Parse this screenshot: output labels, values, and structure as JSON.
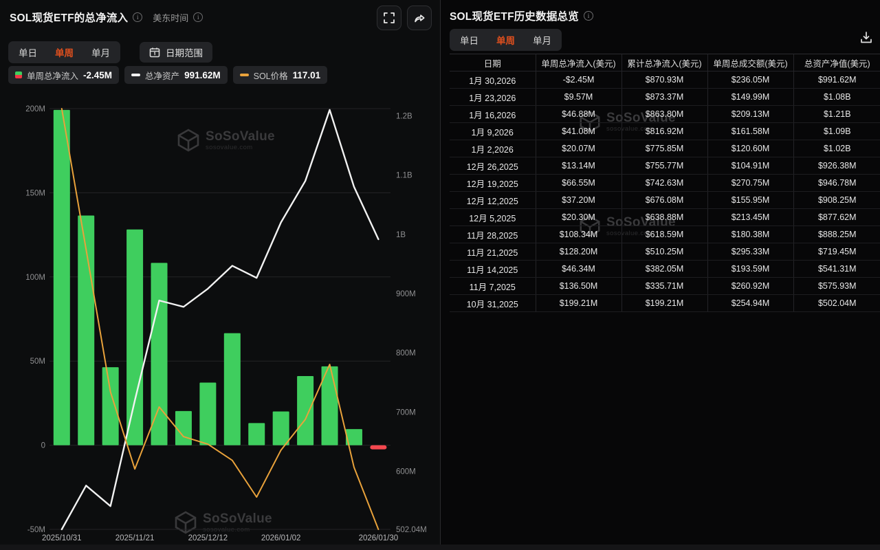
{
  "watermark": {
    "name": "SoSoValue",
    "domain": "sosovalue.com"
  },
  "left_panel": {
    "title": "SOL现货ETF的总净流入",
    "timezone": "美东时间",
    "tabs": [
      "单日",
      "单周",
      "单月"
    ],
    "active_tab": "单周",
    "date_range_label": "日期范围",
    "legend": [
      {
        "label": "单周总净流入",
        "value": "-2.45M",
        "icon": "split-green-red"
      },
      {
        "label": "总净资产",
        "value": "991.62M",
        "icon": "white-dash"
      },
      {
        "label": "SOL价格",
        "value": "117.01",
        "icon": "orange-dash"
      }
    ]
  },
  "chart_data": {
    "type": "bar",
    "subtype": "bar+line combo, dual axis",
    "title": "SOL现货ETF的总净流入",
    "categories": [
      "2025/10/31",
      "2025/11/07",
      "2025/11/14",
      "2025/11/21",
      "2025/11/28",
      "2025/12/05",
      "2025/12/12",
      "2025/12/19",
      "2025/12/26",
      "2026/01/02",
      "2026/01/09",
      "2026/01/16",
      "2026/01/23",
      "2026/01/30"
    ],
    "x_tick_indices": [
      0,
      3,
      6,
      9,
      13
    ],
    "x_tick_labels": [
      "2025/10/31",
      "2025/11/21",
      "2025/12/12",
      "2026/01/02",
      "2026/01/30"
    ],
    "series": [
      {
        "name": "单周总净流入",
        "type": "bar",
        "axis": "left",
        "unit": "M USD",
        "values": [
          199.21,
          136.5,
          46.34,
          128.2,
          108.34,
          20.3,
          37.2,
          66.55,
          13.14,
          20.07,
          41.08,
          46.88,
          9.57,
          -2.45
        ]
      },
      {
        "name": "总净资产",
        "type": "line",
        "axis": "right",
        "unit": "M USD",
        "values": [
          502.04,
          575.93,
          541.31,
          719.45,
          888.25,
          877.62,
          908.25,
          946.78,
          926.38,
          1020,
          1090,
          1210,
          1080,
          991.62
        ]
      },
      {
        "name": "SOL价格",
        "type": "line",
        "axis": "price_hidden",
        "unit": "USD",
        "note": "axis not shown; values estimated from curve, last value 117.01 from legend",
        "values": [
          195.0,
          168.9,
          142.5,
          128.2,
          139.7,
          134.2,
          132.8,
          129.8,
          123.0,
          131.7,
          137.4,
          147.6,
          128.5,
          117.01
        ]
      }
    ],
    "left_axis": {
      "range": [
        -50,
        200
      ],
      "ticks": [
        {
          "label": "200M",
          "value": 200
        },
        {
          "label": "150M",
          "value": 150
        },
        {
          "label": "100M",
          "value": 100
        },
        {
          "label": "50M",
          "value": 50
        },
        {
          "label": "0",
          "value": 0
        },
        {
          "label": "-50M",
          "value": -50
        }
      ]
    },
    "right_axis": {
      "range": [
        502.04,
        1212.04
      ],
      "ticks": [
        {
          "label": "1.2B",
          "value": 1200
        },
        {
          "label": "1.1B",
          "value": 1100
        },
        {
          "label": "1B",
          "value": 1000
        },
        {
          "label": "900M",
          "value": 900
        },
        {
          "label": "800M",
          "value": 800
        },
        {
          "label": "700M",
          "value": 700
        },
        {
          "label": "600M",
          "value": 600
        },
        {
          "label": "502.04M",
          "value": 502.04
        }
      ]
    },
    "price_axis": {
      "range": [
        117.01,
        195.0
      ],
      "hidden": true
    },
    "grid": "horizontal gridlines on left-axis ticks",
    "legend_position": "top-left"
  },
  "right_panel": {
    "title": "SOL现货ETF历史数据总览",
    "tabs": [
      "单日",
      "单周",
      "单月"
    ],
    "active_tab": "单周",
    "table": {
      "columns": [
        "日期",
        "单周总净流入(美元)",
        "累计总净流入(美元)",
        "单周总成交额(美元)",
        "总资产净值(美元)"
      ],
      "rows": [
        [
          "1月 30,2026",
          "-$2.45M",
          "$870.93M",
          "$236.05M",
          "$991.62M"
        ],
        [
          "1月 23,2026",
          "$9.57M",
          "$873.37M",
          "$149.99M",
          "$1.08B"
        ],
        [
          "1月 16,2026",
          "$46.88M",
          "$863.80M",
          "$209.13M",
          "$1.21B"
        ],
        [
          "1月 9,2026",
          "$41.08M",
          "$816.92M",
          "$161.58M",
          "$1.09B"
        ],
        [
          "1月 2,2026",
          "$20.07M",
          "$775.85M",
          "$120.60M",
          "$1.02B"
        ],
        [
          "12月 26,2025",
          "$13.14M",
          "$755.77M",
          "$104.91M",
          "$926.38M"
        ],
        [
          "12月 19,2025",
          "$66.55M",
          "$742.63M",
          "$270.75M",
          "$946.78M"
        ],
        [
          "12月 12,2025",
          "$37.20M",
          "$676.08M",
          "$155.95M",
          "$908.25M"
        ],
        [
          "12月 5,2025",
          "$20.30M",
          "$638.88M",
          "$213.45M",
          "$877.62M"
        ],
        [
          "11月 28,2025",
          "$108.34M",
          "$618.59M",
          "$180.38M",
          "$888.25M"
        ],
        [
          "11月 21,2025",
          "$128.20M",
          "$510.25M",
          "$295.33M",
          "$719.45M"
        ],
        [
          "11月 14,2025",
          "$46.34M",
          "$382.05M",
          "$193.59M",
          "$541.31M"
        ],
        [
          "11月 7,2025",
          "$136.50M",
          "$335.71M",
          "$260.92M",
          "$575.93M"
        ],
        [
          "10月 31,2025",
          "$199.21M",
          "$199.21M",
          "$254.94M",
          "$502.04M"
        ]
      ]
    }
  },
  "colors": {
    "accent_orange": "#DD4F1E",
    "bar_green": "#3FCE5E",
    "bar_red": "#F5484F",
    "nav_line": "#F2F2F2",
    "price_line": "#E9A23B",
    "value_green": "#1EC77E",
    "value_red": "#F23645",
    "grid_line": "#242427",
    "axis_text": "#8F8F91",
    "x_label_text": "#B9B9BB"
  }
}
